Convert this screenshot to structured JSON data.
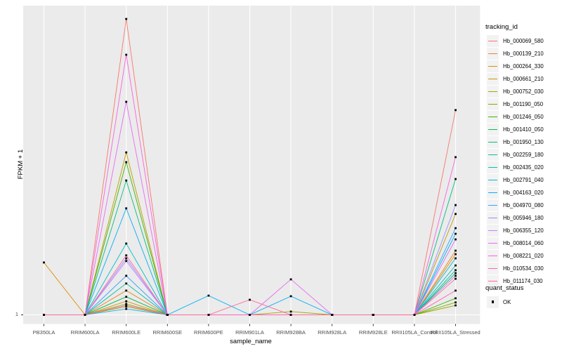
{
  "chart_data": {
    "type": "line",
    "title": "",
    "xlabel": "sample_name",
    "ylabel": "FPKM + 1",
    "legend_position": "right",
    "categories": [
      "PB350LA",
      "RRIM600LA",
      "RRIM600LE",
      "RRIM600SE",
      "RRIM600PE",
      "RRIM901LA",
      "RRIM928BA",
      "RRIM928LA",
      "RRIM928LE",
      "RRII105LA_Control",
      "RRII105LA_Stressed"
    ],
    "y_axis": {
      "tick_labels": [
        "1"
      ],
      "scale_note": "log-like FPKM+1 axis; only the value 1 is labeled. Series values below are relative heights: 0 = baseline (FPKM+1 = 1), 1 = tallest peak (Hb_000069_580 at RRIM600LE)."
    },
    "grid": {
      "vertical_gridline_per_category": true,
      "horizontal_gridline_at_1": true
    },
    "point_marker": {
      "shape": "small-black-square",
      "color": "#000000",
      "meaning": "quant_status OK at every sample"
    },
    "series": [
      {
        "name": "Hb_000069_580",
        "color": "#F8766D",
        "values": [
          0,
          0,
          1,
          0,
          0,
          0,
          0,
          0,
          0,
          0,
          0.692
        ]
      },
      {
        "name": "Hb_000139_210",
        "color": "#EA8331",
        "values": [
          0,
          0,
          0.082,
          0,
          0,
          0,
          0,
          0,
          0,
          0,
          0.217
        ]
      },
      {
        "name": "Hb_000264_330",
        "color": "#D89000",
        "values": [
          0.177,
          0,
          0.046,
          0,
          0,
          0,
          0,
          0,
          0,
          0,
          0.205
        ]
      },
      {
        "name": "Hb_000661_210",
        "color": "#C49A00",
        "values": [
          0,
          0,
          0.549,
          0,
          0,
          0,
          0,
          0,
          0,
          0,
          0.341
        ]
      },
      {
        "name": "Hb_000752_030",
        "color": "#A3A500",
        "values": [
          0,
          0,
          0.028,
          0,
          0,
          0,
          0.011,
          0,
          0,
          0,
          0.032
        ]
      },
      {
        "name": "Hb_001190_050",
        "color": "#7CAE00",
        "values": [
          0,
          0,
          0.037,
          0,
          0,
          0,
          0,
          0,
          0,
          0,
          0.042
        ]
      },
      {
        "name": "Hb_001246_050",
        "color": "#39B600",
        "values": [
          0,
          0,
          0.516,
          0,
          0,
          0,
          0,
          0,
          0,
          0,
          0.056
        ]
      },
      {
        "name": "Hb_001410_050",
        "color": "#00BB4E",
        "values": [
          0,
          0,
          0.061,
          0,
          0,
          0,
          0,
          0,
          0,
          0,
          0.141
        ]
      },
      {
        "name": "Hb_001950_130",
        "color": "#00BF7D",
        "values": [
          0,
          0,
          0.454,
          0,
          0,
          0,
          0,
          0,
          0,
          0,
          0.459
        ]
      },
      {
        "name": "Hb_002259_180",
        "color": "#00C1A3",
        "values": [
          0,
          0,
          0.106,
          0,
          0,
          0,
          0,
          0,
          0,
          0,
          0.151
        ]
      },
      {
        "name": "Hb_002435_020",
        "color": "#00BFC4",
        "values": [
          0,
          0,
          0.241,
          0,
          0,
          0,
          0,
          0,
          0,
          0,
          0.167
        ]
      },
      {
        "name": "Hb_002791_040",
        "color": "#00BAE0",
        "values": [
          0,
          0,
          0.02,
          0,
          0,
          0,
          0,
          0,
          0,
          0,
          0.191
        ]
      },
      {
        "name": "Hb_004163_020",
        "color": "#00B0F6",
        "values": [
          0,
          0,
          0.36,
          0,
          0.065,
          0,
          0.063,
          0,
          0,
          0,
          0.274
        ]
      },
      {
        "name": "Hb_004970_080",
        "color": "#35A2FF",
        "values": [
          0,
          0,
          0.132,
          0,
          0,
          0,
          0,
          0,
          0,
          0,
          0.293
        ]
      },
      {
        "name": "Hb_005946_180",
        "color": "#9590FF",
        "values": [
          0,
          0,
          0.191,
          0,
          0,
          0,
          0,
          0,
          0,
          0,
          0.371
        ]
      },
      {
        "name": "Hb_006355_120",
        "color": "#C77CFF",
        "values": [
          0,
          0,
          0.182,
          0,
          0,
          0,
          0,
          0,
          0,
          0,
          0.132
        ]
      },
      {
        "name": "Hb_008014_060",
        "color": "#E76BF3",
        "values": [
          0,
          0,
          0.72,
          0,
          0,
          0,
          0.12,
          0,
          0,
          0,
          0.255
        ]
      },
      {
        "name": "Hb_008221_020",
        "color": "#FA62DB",
        "values": [
          0,
          0,
          0.879,
          0,
          0,
          0,
          0,
          0,
          0,
          0,
          0.533
        ]
      },
      {
        "name": "Hb_010534_030",
        "color": "#FF62BC",
        "values": [
          0,
          0,
          0.032,
          0,
          0,
          0,
          0,
          0,
          0,
          0,
          0.082
        ]
      },
      {
        "name": "Hb_011174_030",
        "color": "#FF6A98",
        "values": [
          0,
          0,
          0.201,
          0,
          0,
          0.051,
          0,
          0,
          0,
          0,
          0.122
        ]
      }
    ]
  },
  "legend": {
    "tracking_title": "tracking_id",
    "quant_title": "quant_status",
    "quant_items": [
      {
        "label": "OK"
      }
    ]
  },
  "colors": {
    "page_bg": "#FFFFFF",
    "panel_bg": "#EBEBEB",
    "gridline": "#FFFFFF",
    "tick_mark": "#333333",
    "tick_text": "#4D4D4D",
    "axis_title": "#000000",
    "legend_key_bg": "#F2F2F2",
    "point": "#000000"
  }
}
